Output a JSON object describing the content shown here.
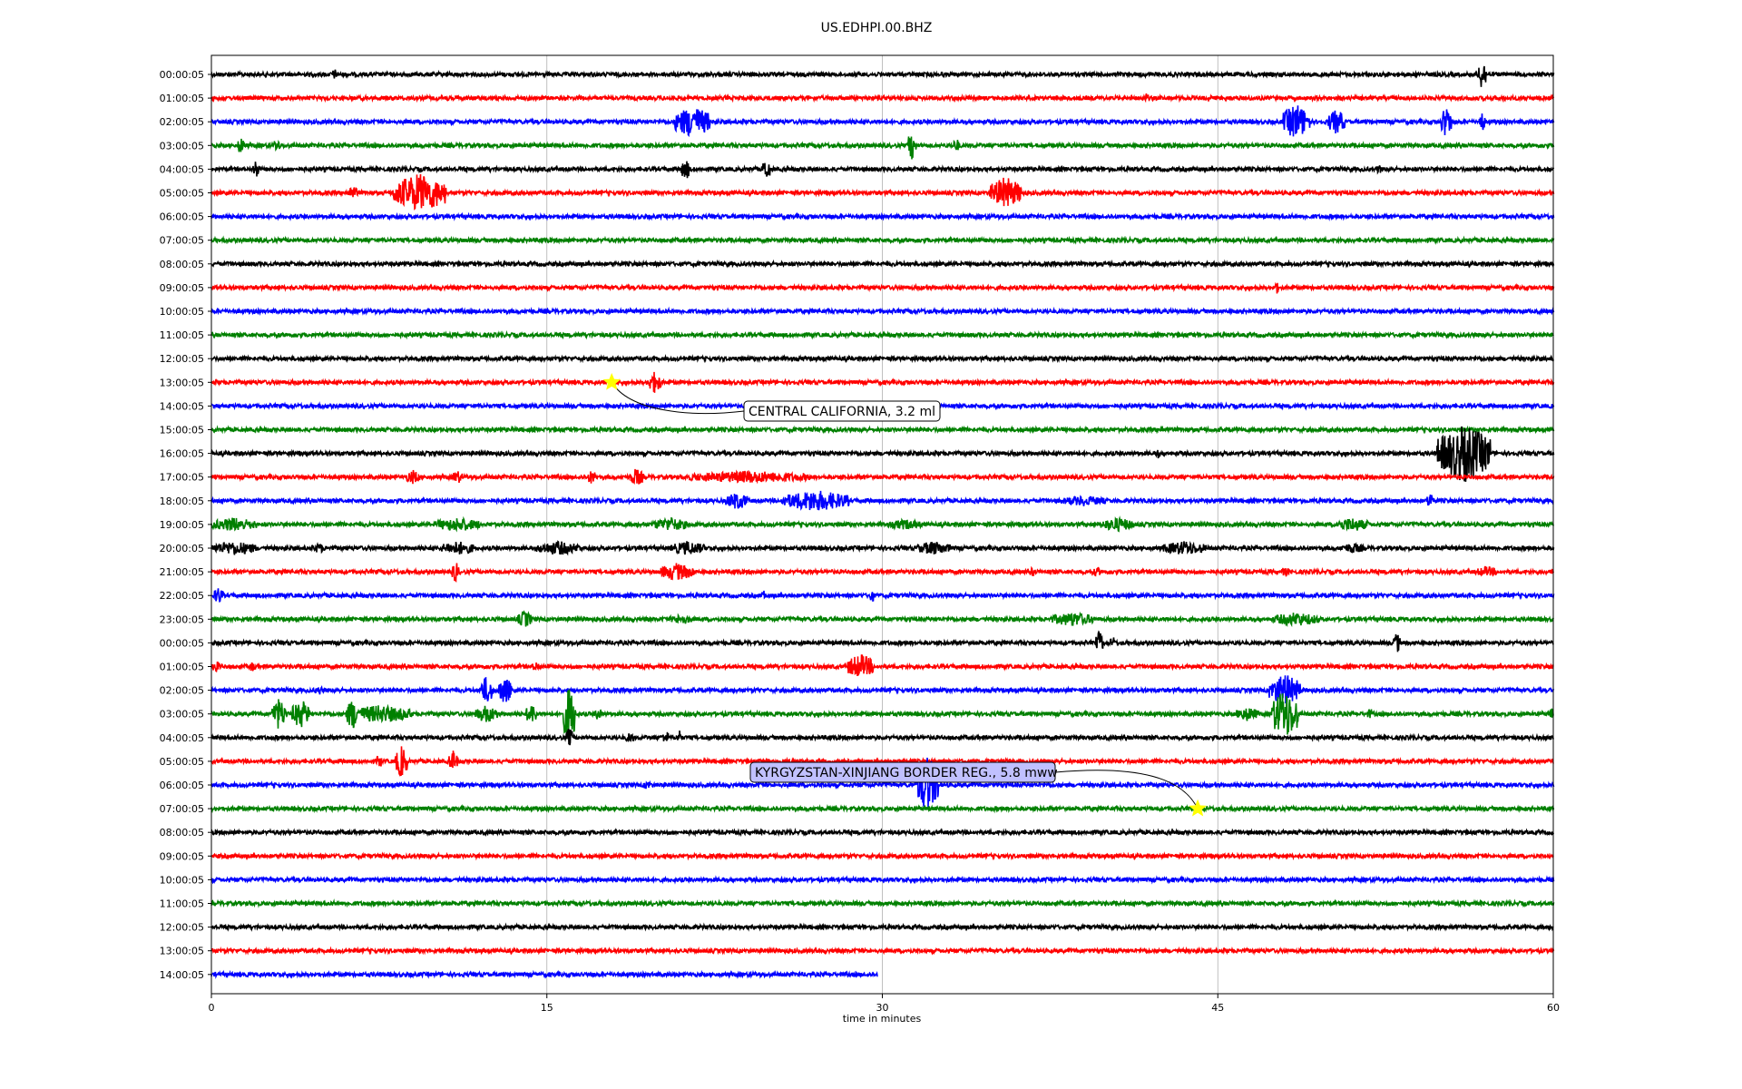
{
  "chart_data": {
    "type": "line",
    "title": "US.EDHPI.00.BHZ",
    "xlabel": "time in minutes",
    "ylabel": "",
    "xlim": [
      0,
      60
    ],
    "xticks": [
      0,
      15,
      30,
      45,
      60
    ],
    "x_grid": true,
    "color_cycle": [
      "#000000",
      "#ff0000",
      "#0000ff",
      "#008000"
    ],
    "rows": [
      {
        "label": "00:00:05",
        "end_minute": 60,
        "events": [
          {
            "t": 5.5,
            "amp": 0.3,
            "dur": 0.3
          },
          {
            "t": 56.8,
            "amp": 0.9,
            "dur": 0.4
          }
        ]
      },
      {
        "label": "01:00:05",
        "end_minute": 60,
        "events": [
          {
            "t": 41.8,
            "amp": 0.3,
            "dur": 0.2
          }
        ]
      },
      {
        "label": "02:00:05",
        "end_minute": 60,
        "events": [
          {
            "t": 21.5,
            "amp": 0.9,
            "dur": 1.6
          },
          {
            "t": 48.5,
            "amp": 1.0,
            "dur": 1.2
          },
          {
            "t": 50.3,
            "amp": 0.7,
            "dur": 0.8
          },
          {
            "t": 55.2,
            "amp": 0.9,
            "dur": 0.5
          },
          {
            "t": 56.8,
            "amp": 0.6,
            "dur": 0.3
          }
        ]
      },
      {
        "label": "03:00:05",
        "end_minute": 60,
        "events": [
          {
            "t": 1.3,
            "amp": 0.5,
            "dur": 0.3
          },
          {
            "t": 2.9,
            "amp": 0.4,
            "dur": 0.3
          },
          {
            "t": 31.3,
            "amp": 0.8,
            "dur": 0.4
          },
          {
            "t": 33.3,
            "amp": 0.4,
            "dur": 0.3
          }
        ]
      },
      {
        "label": "04:00:05",
        "end_minute": 60,
        "events": [
          {
            "t": 2.0,
            "amp": 0.6,
            "dur": 0.3
          },
          {
            "t": 21.2,
            "amp": 0.6,
            "dur": 0.4
          },
          {
            "t": 24.8,
            "amp": 0.7,
            "dur": 0.3
          },
          {
            "t": 52.2,
            "amp": 0.3,
            "dur": 0.2
          }
        ]
      },
      {
        "label": "05:00:05",
        "end_minute": 60,
        "events": [
          {
            "t": 6.3,
            "amp": 0.4,
            "dur": 0.5
          },
          {
            "t": 9.3,
            "amp": 1.1,
            "dur": 2.4
          },
          {
            "t": 35.5,
            "amp": 0.9,
            "dur": 1.4
          }
        ]
      },
      {
        "label": "06:00:05",
        "end_minute": 60,
        "events": []
      },
      {
        "label": "07:00:05",
        "end_minute": 60,
        "events": []
      },
      {
        "label": "08:00:05",
        "end_minute": 60,
        "events": []
      },
      {
        "label": "09:00:05",
        "end_minute": 60,
        "events": [
          {
            "t": 47.6,
            "amp": 0.4,
            "dur": 0.2
          }
        ]
      },
      {
        "label": "10:00:05",
        "end_minute": 60,
        "events": []
      },
      {
        "label": "11:00:05",
        "end_minute": 60,
        "events": []
      },
      {
        "label": "12:00:05",
        "end_minute": 60,
        "events": []
      },
      {
        "label": "13:00:05",
        "end_minute": 60,
        "events": [
          {
            "t": 19.8,
            "amp": 0.6,
            "dur": 0.6
          }
        ]
      },
      {
        "label": "14:00:05",
        "end_minute": 60,
        "events": []
      },
      {
        "label": "15:00:05",
        "end_minute": 60,
        "events": [
          {
            "t": 42.5,
            "amp": 0.3,
            "dur": 0.2
          }
        ]
      },
      {
        "label": "16:00:05",
        "end_minute": 60,
        "events": [
          {
            "t": 42.3,
            "amp": 0.3,
            "dur": 0.2
          },
          {
            "t": 56.0,
            "amp": 1.6,
            "dur": 2.4
          }
        ]
      },
      {
        "label": "17:00:05",
        "end_minute": 60,
        "events": [
          {
            "t": 9.0,
            "amp": 0.4,
            "dur": 0.6
          },
          {
            "t": 11.0,
            "amp": 0.4,
            "dur": 0.4
          },
          {
            "t": 17.0,
            "amp": 0.4,
            "dur": 0.4
          },
          {
            "t": 19.0,
            "amp": 0.5,
            "dur": 0.6
          },
          {
            "t": 24.0,
            "amp": 0.35,
            "dur": 5.5
          }
        ]
      },
      {
        "label": "18:00:05",
        "end_minute": 60,
        "events": [
          {
            "t": 23.5,
            "amp": 0.5,
            "dur": 1.0
          },
          {
            "t": 27.0,
            "amp": 0.6,
            "dur": 3.0
          },
          {
            "t": 39.0,
            "amp": 0.3,
            "dur": 2.0
          },
          {
            "t": 54.5,
            "amp": 0.5,
            "dur": 0.3
          }
        ]
      },
      {
        "label": "19:00:05",
        "end_minute": 60,
        "events": [
          {
            "t": 1.0,
            "amp": 0.4,
            "dur": 2.0
          },
          {
            "t": 11.0,
            "amp": 0.4,
            "dur": 2.0
          },
          {
            "t": 20.5,
            "amp": 0.4,
            "dur": 1.5
          },
          {
            "t": 31.0,
            "amp": 0.3,
            "dur": 1.5
          },
          {
            "t": 40.5,
            "amp": 0.4,
            "dur": 1.5
          },
          {
            "t": 51.0,
            "amp": 0.4,
            "dur": 1.5
          }
        ]
      },
      {
        "label": "20:00:05",
        "end_minute": 60,
        "events": [
          {
            "t": 1.0,
            "amp": 0.4,
            "dur": 2.0
          },
          {
            "t": 4.8,
            "amp": 0.3,
            "dur": 0.5
          },
          {
            "t": 11.0,
            "amp": 0.4,
            "dur": 1.5
          },
          {
            "t": 15.5,
            "amp": 0.4,
            "dur": 2.0
          },
          {
            "t": 21.3,
            "amp": 0.4,
            "dur": 1.5
          },
          {
            "t": 32.3,
            "amp": 0.4,
            "dur": 1.5
          },
          {
            "t": 43.5,
            "amp": 0.4,
            "dur": 2.0
          },
          {
            "t": 51.0,
            "amp": 0.3,
            "dur": 1.0
          }
        ]
      },
      {
        "label": "21:00:05",
        "end_minute": 60,
        "events": [
          {
            "t": 10.9,
            "amp": 0.6,
            "dur": 0.3
          },
          {
            "t": 20.8,
            "amp": 0.5,
            "dur": 1.5
          },
          {
            "t": 36.7,
            "amp": 0.3,
            "dur": 0.3
          },
          {
            "t": 39.6,
            "amp": 0.3,
            "dur": 0.3
          },
          {
            "t": 48.0,
            "amp": 0.3,
            "dur": 0.3
          },
          {
            "t": 57.0,
            "amp": 0.3,
            "dur": 1.0
          }
        ]
      },
      {
        "label": "22:00:05",
        "end_minute": 60,
        "events": [
          {
            "t": 0.3,
            "amp": 0.5,
            "dur": 0.4
          },
          {
            "t": 24.7,
            "amp": 0.3,
            "dur": 0.2
          },
          {
            "t": 29.5,
            "amp": 0.4,
            "dur": 0.3
          }
        ]
      },
      {
        "label": "23:00:05",
        "end_minute": 60,
        "events": [
          {
            "t": 14.0,
            "amp": 0.5,
            "dur": 0.6
          },
          {
            "t": 21.0,
            "amp": 0.3,
            "dur": 1.0
          },
          {
            "t": 38.5,
            "amp": 0.4,
            "dur": 2.0
          },
          {
            "t": 48.5,
            "amp": 0.4,
            "dur": 2.0
          }
        ]
      },
      {
        "label": "00:00:05",
        "end_minute": 60,
        "events": [
          {
            "t": 39.7,
            "amp": 0.7,
            "dur": 0.3
          },
          {
            "t": 40.3,
            "amp": 0.4,
            "dur": 0.2
          },
          {
            "t": 53.0,
            "amp": 0.6,
            "dur": 0.3
          }
        ]
      },
      {
        "label": "01:00:05",
        "end_minute": 60,
        "events": [
          {
            "t": 0.2,
            "amp": 0.3,
            "dur": 0.5
          },
          {
            "t": 1.8,
            "amp": 0.3,
            "dur": 0.3
          },
          {
            "t": 14.5,
            "amp": 0.3,
            "dur": 0.3
          },
          {
            "t": 29.0,
            "amp": 0.7,
            "dur": 1.2
          }
        ]
      },
      {
        "label": "02:00:05",
        "end_minute": 60,
        "events": [
          {
            "t": 4.8,
            "amp": 0.3,
            "dur": 0.3
          },
          {
            "t": 12.3,
            "amp": 0.8,
            "dur": 0.6
          },
          {
            "t": 13.1,
            "amp": 0.8,
            "dur": 0.6
          },
          {
            "t": 48.0,
            "amp": 0.9,
            "dur": 1.4
          }
        ]
      },
      {
        "label": "03:00:05",
        "end_minute": 60,
        "events": [
          {
            "t": 3.0,
            "amp": 0.9,
            "dur": 0.6
          },
          {
            "t": 4.0,
            "amp": 0.8,
            "dur": 0.8
          },
          {
            "t": 6.3,
            "amp": 0.9,
            "dur": 0.5
          },
          {
            "t": 7.5,
            "amp": 0.5,
            "dur": 3.0
          },
          {
            "t": 12.3,
            "amp": 0.5,
            "dur": 1.0
          },
          {
            "t": 14.3,
            "amp": 0.6,
            "dur": 0.5
          },
          {
            "t": 16.0,
            "amp": 1.6,
            "dur": 0.6
          },
          {
            "t": 17.3,
            "amp": 0.4,
            "dur": 0.3
          },
          {
            "t": 46.3,
            "amp": 0.4,
            "dur": 1.0
          },
          {
            "t": 48.0,
            "amp": 1.4,
            "dur": 1.2
          },
          {
            "t": 51.8,
            "amp": 0.3,
            "dur": 0.3
          },
          {
            "t": 59.9,
            "amp": 0.4,
            "dur": 0.1
          }
        ]
      },
      {
        "label": "04:00:05",
        "end_minute": 60,
        "events": [
          {
            "t": 16.0,
            "amp": 0.6,
            "dur": 0.3
          },
          {
            "t": 18.7,
            "amp": 0.3,
            "dur": 0.4
          },
          {
            "t": 20.3,
            "amp": 0.4,
            "dur": 0.3
          },
          {
            "t": 20.9,
            "amp": 0.5,
            "dur": 0.2
          }
        ]
      },
      {
        "label": "05:00:05",
        "end_minute": 60,
        "events": [
          {
            "t": 7.5,
            "amp": 0.4,
            "dur": 0.3
          },
          {
            "t": 8.5,
            "amp": 0.9,
            "dur": 0.6
          },
          {
            "t": 10.8,
            "amp": 0.6,
            "dur": 0.4
          }
        ]
      },
      {
        "label": "06:00:05",
        "end_minute": 60,
        "events": [
          {
            "t": 19.5,
            "amp": 0.3,
            "dur": 0.3
          },
          {
            "t": 32.0,
            "amp": 1.6,
            "dur": 1.0
          }
        ]
      },
      {
        "label": "07:00:05",
        "end_minute": 60,
        "events": []
      },
      {
        "label": "08:00:05",
        "end_minute": 60,
        "events": []
      },
      {
        "label": "09:00:05",
        "end_minute": 60,
        "events": []
      },
      {
        "label": "10:00:05",
        "end_minute": 60,
        "events": []
      },
      {
        "label": "11:00:05",
        "end_minute": 60,
        "events": []
      },
      {
        "label": "12:00:05",
        "end_minute": 60,
        "events": []
      },
      {
        "label": "13:00:05",
        "end_minute": 60,
        "events": []
      },
      {
        "label": "14:00:05",
        "end_minute": 29.8,
        "events": []
      }
    ],
    "annotations": [
      {
        "text": "CENTRAL CALIFORNIA, 3.2 ml",
        "row": 13,
        "t": 17.9,
        "marker": "star",
        "marker_color": "#ffff00",
        "box_color": "#ffffff"
      },
      {
        "text": "KYRGYZSTAN-XINJIANG BORDER REG., 5.8 mww",
        "row": 31,
        "t": 44.1,
        "marker": "star",
        "marker_color": "#ffff00",
        "box_color": "#c0c0ff"
      }
    ]
  }
}
